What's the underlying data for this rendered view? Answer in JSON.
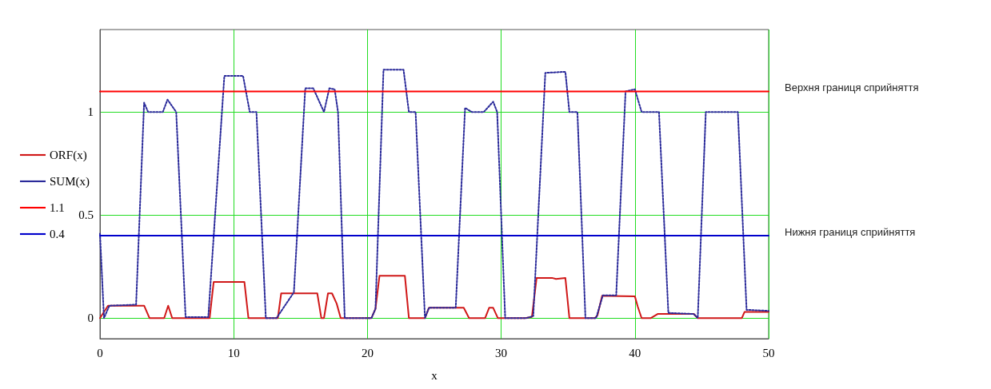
{
  "chart_data": {
    "type": "line",
    "xlabel": "x",
    "xlim": [
      0,
      50
    ],
    "xticks": [
      0,
      10,
      20,
      30,
      40,
      50
    ],
    "ylim": [
      -0.1,
      1.4
    ],
    "yticks": [
      0,
      0.5,
      1
    ],
    "grid": true,
    "legend": "left",
    "marker": "none",
    "series": [
      {
        "name": "ORF(x)",
        "color": "#d01818",
        "line_style": "solid",
        "x": [
          0,
          0.6,
          3.3,
          3.7,
          4.8,
          5.1,
          5.4,
          8.2,
          8.5,
          10.8,
          11.1,
          13.3,
          13.55,
          16.25,
          16.55,
          16.75,
          17.05,
          17.35,
          17.7,
          18.0,
          20.3,
          20.6,
          20.9,
          22.8,
          23.1,
          24.3,
          24.6,
          27.2,
          27.6,
          28.8,
          29.1,
          29.4,
          29.75,
          31.8,
          32.3,
          32.65,
          33.8,
          34.1,
          34.8,
          35.1,
          37.0,
          37.2,
          37.55,
          40.0,
          40.2,
          40.5,
          41.2,
          41.7,
          44.4,
          44.7,
          48.0,
          48.2,
          50
        ],
        "values": [
          0,
          0.06,
          0.06,
          0,
          0,
          0.06,
          0,
          0,
          0.175,
          0.175,
          0,
          0,
          0.12,
          0.12,
          0,
          0,
          0.12,
          0.12,
          0.07,
          0,
          0,
          0.045,
          0.205,
          0.205,
          0,
          0,
          0.05,
          0.05,
          0,
          0,
          0.05,
          0.05,
          0,
          0,
          0.006,
          0.195,
          0.195,
          0.19,
          0.195,
          0,
          0,
          0.013,
          0.108,
          0.105,
          0.058,
          0,
          0,
          0.02,
          0.02,
          0,
          0,
          0.03,
          0.03
        ]
      },
      {
        "name": "SUM(x)",
        "color": "#2a2a9a",
        "line_style": "dotted",
        "x": [
          0,
          0.3,
          0.7,
          2.7,
          3.3,
          3.6,
          4.7,
          5.05,
          5.7,
          6.4,
          8.1,
          9.3,
          10.7,
          11.2,
          11.7,
          12.4,
          13.2,
          14.5,
          15.35,
          15.95,
          16.75,
          17.15,
          17.55,
          17.8,
          18.3,
          20.3,
          20.6,
          21.2,
          22.7,
          23.1,
          23.6,
          24.3,
          24.6,
          26.6,
          27.3,
          27.8,
          28.7,
          29.4,
          29.7,
          30.3,
          31.9,
          32.4,
          33.3,
          34.8,
          35.1,
          35.7,
          36.3,
          37.1,
          37.6,
          38.6,
          39.3,
          40.0,
          40.5,
          41.8,
          42.5,
          44.4,
          44.7,
          45.3,
          47.7,
          48.35,
          50
        ],
        "values": [
          0.41,
          0,
          0.06,
          0.065,
          1.045,
          1.0,
          1.0,
          1.06,
          1.0,
          0.005,
          0.005,
          1.175,
          1.175,
          1.0,
          1.0,
          0,
          0,
          0.125,
          1.115,
          1.115,
          1.0,
          1.115,
          1.11,
          1.0,
          0,
          0,
          0.045,
          1.205,
          1.205,
          1.0,
          1.0,
          0,
          0.05,
          0.05,
          1.02,
          1.0,
          1.0,
          1.05,
          1.0,
          0,
          0,
          0.01,
          1.19,
          1.195,
          1.0,
          1.0,
          0,
          0,
          0.11,
          0.11,
          1.1,
          1.11,
          1.0,
          1.0,
          0.025,
          0.02,
          0,
          1.0,
          1.0,
          0.04,
          0.035
        ]
      },
      {
        "name": "1.1",
        "color": "#ff0000",
        "line_style": "solid",
        "x": [
          0,
          50
        ],
        "values": [
          1.1,
          1.1
        ]
      },
      {
        "name": "0.4",
        "color": "#0000cc",
        "line_style": "solid",
        "x": [
          0,
          50
        ],
        "values": [
          0.4,
          0.4
        ]
      }
    ],
    "annotations": [
      {
        "text": "Верхня границя сприйняття",
        "x": 50,
        "y": 1.1
      },
      {
        "text": "Нижня границя сприйняття",
        "x": 50,
        "y": 0.4
      }
    ]
  }
}
